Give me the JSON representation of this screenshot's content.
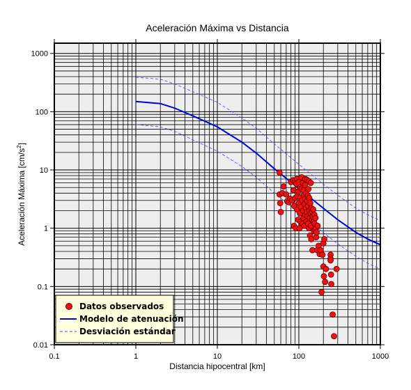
{
  "chart_data": {
    "type": "scatter",
    "title": "Aceleración Máxima vs Distancia",
    "xlabel": "Distancia hipocentral [km]",
    "ylabel_prefix": "Aceleración Máxima [cm/s",
    "ylabel_sup": "2",
    "ylabel_suffix": "]",
    "xscale": "log",
    "yscale": "log",
    "xlim": [
      0.1,
      1000
    ],
    "ylim": [
      0.01,
      1500
    ],
    "x_ticks": [
      {
        "value": 0.1,
        "label": "0.1"
      },
      {
        "value": 1,
        "label": "1"
      },
      {
        "value": 10,
        "label": "10"
      },
      {
        "value": 100,
        "label": "100"
      },
      {
        "value": 1000,
        "label": "1000"
      }
    ],
    "y_ticks": [
      {
        "value": 0.01,
        "label": "0.01"
      },
      {
        "value": 0.1,
        "label": "0.1"
      },
      {
        "value": 1,
        "label": "1"
      },
      {
        "value": 10,
        "label": "10"
      },
      {
        "value": 100,
        "label": "100"
      },
      {
        "value": 1000,
        "label": "1000"
      }
    ],
    "grid": true,
    "legend_position": "bottom-left",
    "series": [
      {
        "name": "Datos observados",
        "kind": "scatter",
        "color": "#ee1111",
        "x": [
          58,
          58,
          59,
          60,
          63,
          65,
          70,
          72,
          75,
          78,
          80,
          83,
          85,
          86,
          87,
          88,
          90,
          90,
          92,
          93,
          95,
          95,
          96,
          98,
          99,
          100,
          100,
          102,
          103,
          104,
          105,
          105,
          106,
          108,
          108,
          110,
          110,
          112,
          113,
          114,
          115,
          116,
          117,
          118,
          119,
          120,
          120,
          121,
          122,
          123,
          124,
          125,
          126,
          127,
          128,
          129,
          130,
          130,
          131,
          132,
          133,
          134,
          135,
          136,
          137,
          138,
          140,
          140,
          141,
          142,
          143,
          145,
          146,
          147,
          148,
          150,
          152,
          153,
          155,
          156,
          158,
          160,
          162,
          163,
          165,
          168,
          170,
          175,
          180,
          185,
          190,
          195,
          200,
          200,
          203,
          205,
          210,
          215,
          245,
          245,
          245,
          248,
          250,
          260,
          270,
          290
        ],
        "y": [
          9.0,
          3.8,
          2.7,
          1.9,
          4.0,
          5.2,
          3.8,
          2.9,
          2.8,
          3.2,
          6.2,
          3.0,
          6.7,
          4.5,
          1.1,
          2.4,
          6.5,
          3.3,
          1.0,
          5.8,
          7.0,
          2.1,
          3.5,
          1.4,
          4.3,
          6.2,
          2.7,
          1.0,
          1.8,
          5.0,
          3.4,
          1.3,
          2.3,
          7.5,
          4.8,
          1.2,
          3.0,
          6.0,
          2.0,
          1.5,
          4.5,
          3.7,
          1.1,
          2.6,
          5.5,
          7.0,
          3.2,
          1.7,
          2.2,
          4.0,
          1.3,
          6.8,
          1.9,
          2.9,
          1.6,
          3.6,
          2.4,
          1.2,
          4.7,
          6.5,
          1.0,
          3.3,
          2.0,
          1.5,
          0.75,
          2.7,
          6.0,
          1.8,
          1.1,
          0.65,
          2.2,
          1.4,
          1.9,
          0.42,
          1.6,
          2.1,
          1.3,
          0.9,
          1.7,
          1.2,
          0.95,
          1.5,
          1.0,
          0.7,
          0.85,
          0.42,
          1.1,
          0.5,
          0.36,
          0.42,
          0.08,
          0.35,
          0.55,
          0.22,
          0.15,
          0.65,
          0.12,
          0.2,
          0.35,
          0.3,
          0.28,
          0.16,
          0.11,
          0.033,
          0.014,
          0.2
        ]
      },
      {
        "name": "Modelo de atenuación",
        "kind": "line",
        "color": "#0000dd",
        "x": [
          1,
          2,
          3,
          5,
          10,
          20,
          30,
          50,
          100,
          200,
          300,
          500,
          700,
          1000
        ],
        "y": [
          150,
          138,
          115,
          85,
          55,
          30,
          19.5,
          10.5,
          4.8,
          2.2,
          1.4,
          0.85,
          0.65,
          0.52
        ]
      },
      {
        "name": "Desviación estándar",
        "kind": "dashed",
        "color": "#4444ee",
        "x": [
          1,
          2,
          3,
          5,
          10,
          20,
          30,
          50,
          100,
          200,
          300,
          500,
          700,
          1000
        ],
        "y": [
          390,
          360,
          300,
          220,
          145,
          78,
          52,
          28,
          12.5,
          5.7,
          3.7,
          2.2,
          1.7,
          1.35
        ]
      },
      {
        "name": "",
        "kind": "dashed",
        "color": "#4444ee",
        "x": [
          1,
          2,
          3,
          5,
          10,
          20,
          30,
          50,
          100,
          200,
          300,
          500,
          700,
          1000
        ],
        "y": [
          60,
          55,
          46,
          33,
          21,
          11.5,
          7.5,
          4.0,
          1.85,
          0.84,
          0.54,
          0.33,
          0.25,
          0.2
        ]
      }
    ]
  },
  "colors": {
    "plot_background": "#eeeeee",
    "legend_background": "#ffffdd",
    "marker_edge": "#660000"
  }
}
